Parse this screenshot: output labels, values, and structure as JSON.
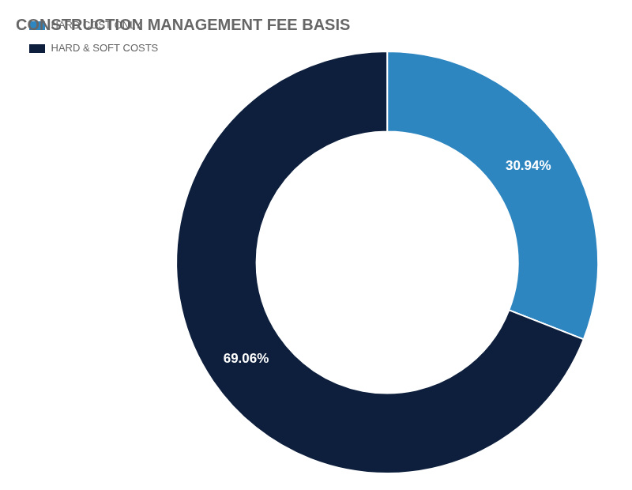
{
  "chart_data": {
    "type": "doughnut",
    "title": "CONSTRUCTION MANAGEMENT FEE BASIS",
    "categories": [
      "HARD COST ONLY",
      "HARD & SOFT COSTS"
    ],
    "values": [
      30.94,
      69.06
    ],
    "value_labels": [
      "30.94%",
      "69.06%"
    ],
    "colors": [
      "#2E86C1",
      "#0D1F3C"
    ],
    "data_labels": true,
    "legend": "left"
  }
}
